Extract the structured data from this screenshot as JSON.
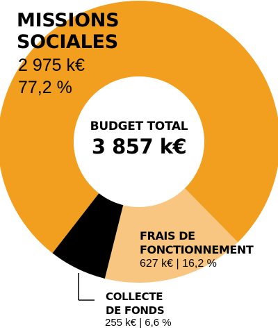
{
  "chart_data": {
    "type": "pie",
    "style": "donut",
    "title": "BUDGET TOTAL",
    "total_label": "3 857 k€",
    "slices": [
      {
        "name_lines": [
          "MISSIONS",
          "SOCIALES"
        ],
        "value_label": "2 975 k€",
        "pct_label": "77,2 %",
        "value": 2975,
        "percent": 77.2,
        "color": "#F29F1F"
      },
      {
        "name_lines": [
          "FRAIS DE",
          "FONCTIONNEMENT"
        ],
        "value_label": "627 k€ | 16,2 %",
        "value": 627,
        "percent": 16.2,
        "color": "#F8C680"
      },
      {
        "name_lines": [
          "COLLECTE",
          "DE FONDS"
        ],
        "value_label": "255 k€ | 6,6 %",
        "value": 255,
        "percent": 6.6,
        "color": "#000000"
      }
    ]
  }
}
